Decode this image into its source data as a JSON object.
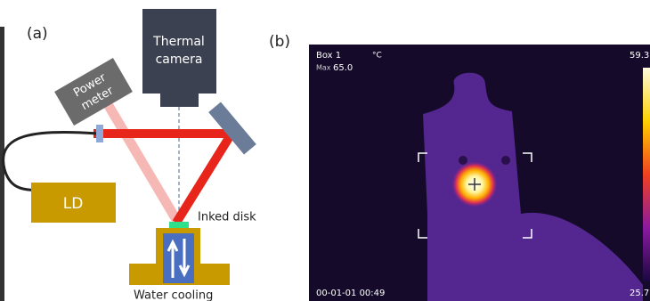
{
  "panel_a": {
    "label": "(a)",
    "camera_line1": "Thermal",
    "camera_line2": "camera",
    "power_line1": "Power",
    "power_line2": "meter",
    "laser": "LD",
    "disk": "Inked disk",
    "cooling": "Water cooling"
  },
  "panel_b": {
    "label": "(b)",
    "box": "Box 1",
    "max_label": "Max",
    "max_value": "65.0",
    "unit": "°C",
    "scale_max": "59.3",
    "scale_min": "25.7",
    "timestamp": "00-01-01 00:49"
  }
}
